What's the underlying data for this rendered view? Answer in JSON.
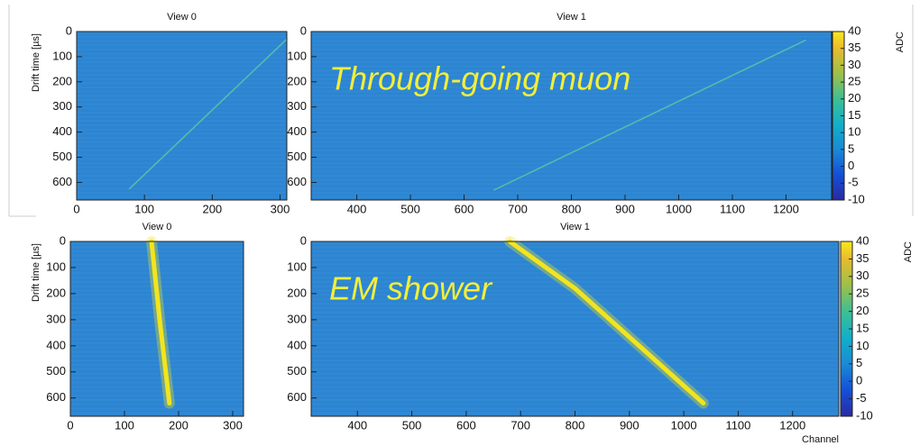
{
  "chart_data": [
    {
      "type": "heatmap",
      "title": "View 0",
      "ylabel": "Drift time [µs]",
      "xlim": [
        0,
        310
      ],
      "ylim": [
        0,
        670
      ],
      "y_inverted": true,
      "xticks": [
        0,
        100,
        200,
        300
      ],
      "yticks": [
        0,
        100,
        200,
        300,
        400,
        500,
        600
      ],
      "background": "#2c84d2",
      "series": [
        {
          "color": "#5cc6a4",
          "x": [
            78,
            310
          ],
          "values": [
            625,
            30
          ]
        }
      ]
    },
    {
      "type": "heatmap",
      "title": "View 1",
      "annotation": "Through-going muon",
      "xlim": [
        315,
        1285
      ],
      "ylim": [
        0,
        670
      ],
      "y_inverted": true,
      "xticks": [
        400,
        500,
        600,
        700,
        800,
        900,
        1000,
        1100,
        1200
      ],
      "yticks": [
        0,
        100,
        200,
        300,
        400,
        500,
        600
      ],
      "background": "#2c84d2",
      "colorbar": {
        "label": "ADC",
        "lim": [
          -10,
          40
        ],
        "ticks": [
          -10,
          -5,
          0,
          5,
          10,
          15,
          20,
          25,
          30,
          35,
          40
        ]
      },
      "series": [
        {
          "color": "#5cc6a4",
          "x": [
            656,
            1236
          ],
          "values": [
            630,
            35
          ]
        }
      ]
    },
    {
      "type": "shower",
      "title": "View 0",
      "ylabel": "Drift time [µs]",
      "xlim": [
        0,
        320
      ],
      "ylim": [
        0,
        670
      ],
      "y_inverted": true,
      "xticks": [
        0,
        100,
        200,
        300
      ],
      "yticks": [
        0,
        100,
        200,
        300,
        400,
        500,
        600
      ],
      "background": "#2c84d2",
      "series": [
        {
          "color": "#f2e41e",
          "x": [
            150,
            165,
            183
          ],
          "values": [
            0,
            300,
            620
          ]
        }
      ]
    },
    {
      "type": "shower",
      "title": "View 1",
      "annotation": "EM shower",
      "xlabel": "Channel",
      "xlim": [
        315,
        1285
      ],
      "ylim": [
        0,
        670
      ],
      "y_inverted": true,
      "xticks": [
        400,
        500,
        600,
        700,
        800,
        900,
        1000,
        1100,
        1200
      ],
      "yticks": [
        0,
        100,
        200,
        300,
        400,
        500,
        600
      ],
      "background": "#2c84d2",
      "colorbar": {
        "label": "ADC",
        "lim": [
          -10,
          40
        ],
        "ticks": [
          -10,
          -5,
          0,
          5,
          10,
          15,
          20,
          25,
          30,
          35,
          40
        ]
      },
      "series": [
        {
          "color": "#f2e41e",
          "x": [
            680,
            800,
            1036
          ],
          "values": [
            0,
            180,
            620
          ]
        }
      ]
    }
  ]
}
